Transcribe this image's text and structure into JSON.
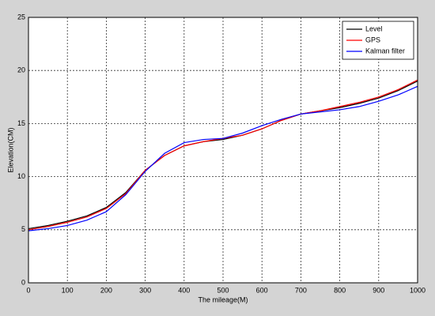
{
  "chart_data": {
    "type": "line",
    "xlabel": "The mileage(M)",
    "ylabel": "Elevation(CM)",
    "x": [
      0,
      50,
      100,
      150,
      200,
      250,
      300,
      350,
      400,
      450,
      500,
      550,
      600,
      650,
      700,
      750,
      800,
      850,
      900,
      950,
      1000
    ],
    "series": [
      {
        "name": "Level",
        "color": "#000000",
        "values": [
          5.1,
          5.4,
          5.8,
          6.3,
          7.1,
          8.5,
          10.6,
          12.0,
          12.9,
          13.3,
          13.5,
          13.9,
          14.5,
          15.3,
          15.9,
          16.2,
          16.5,
          16.9,
          17.4,
          18.1,
          19.0
        ]
      },
      {
        "name": "GPS",
        "color": "#ff0000",
        "values": [
          5.0,
          5.3,
          5.7,
          6.2,
          7.0,
          8.4,
          10.6,
          12.0,
          12.9,
          13.3,
          13.6,
          13.9,
          14.5,
          15.3,
          15.9,
          16.2,
          16.6,
          17.0,
          17.5,
          18.2,
          19.1
        ]
      },
      {
        "name": "Kalman filter",
        "color": "#0000ff",
        "values": [
          4.9,
          5.1,
          5.4,
          5.9,
          6.7,
          8.3,
          10.5,
          12.2,
          13.2,
          13.5,
          13.6,
          14.1,
          14.8,
          15.4,
          15.9,
          16.1,
          16.3,
          16.6,
          17.1,
          17.7,
          18.5
        ]
      }
    ],
    "xlim": [
      0,
      1000
    ],
    "ylim": [
      0,
      25
    ],
    "xticks": [
      0,
      100,
      200,
      300,
      400,
      500,
      600,
      700,
      800,
      900,
      1000
    ],
    "yticks": [
      0,
      5,
      10,
      15,
      20,
      25
    ],
    "grid": true,
    "legend": "top-right"
  }
}
